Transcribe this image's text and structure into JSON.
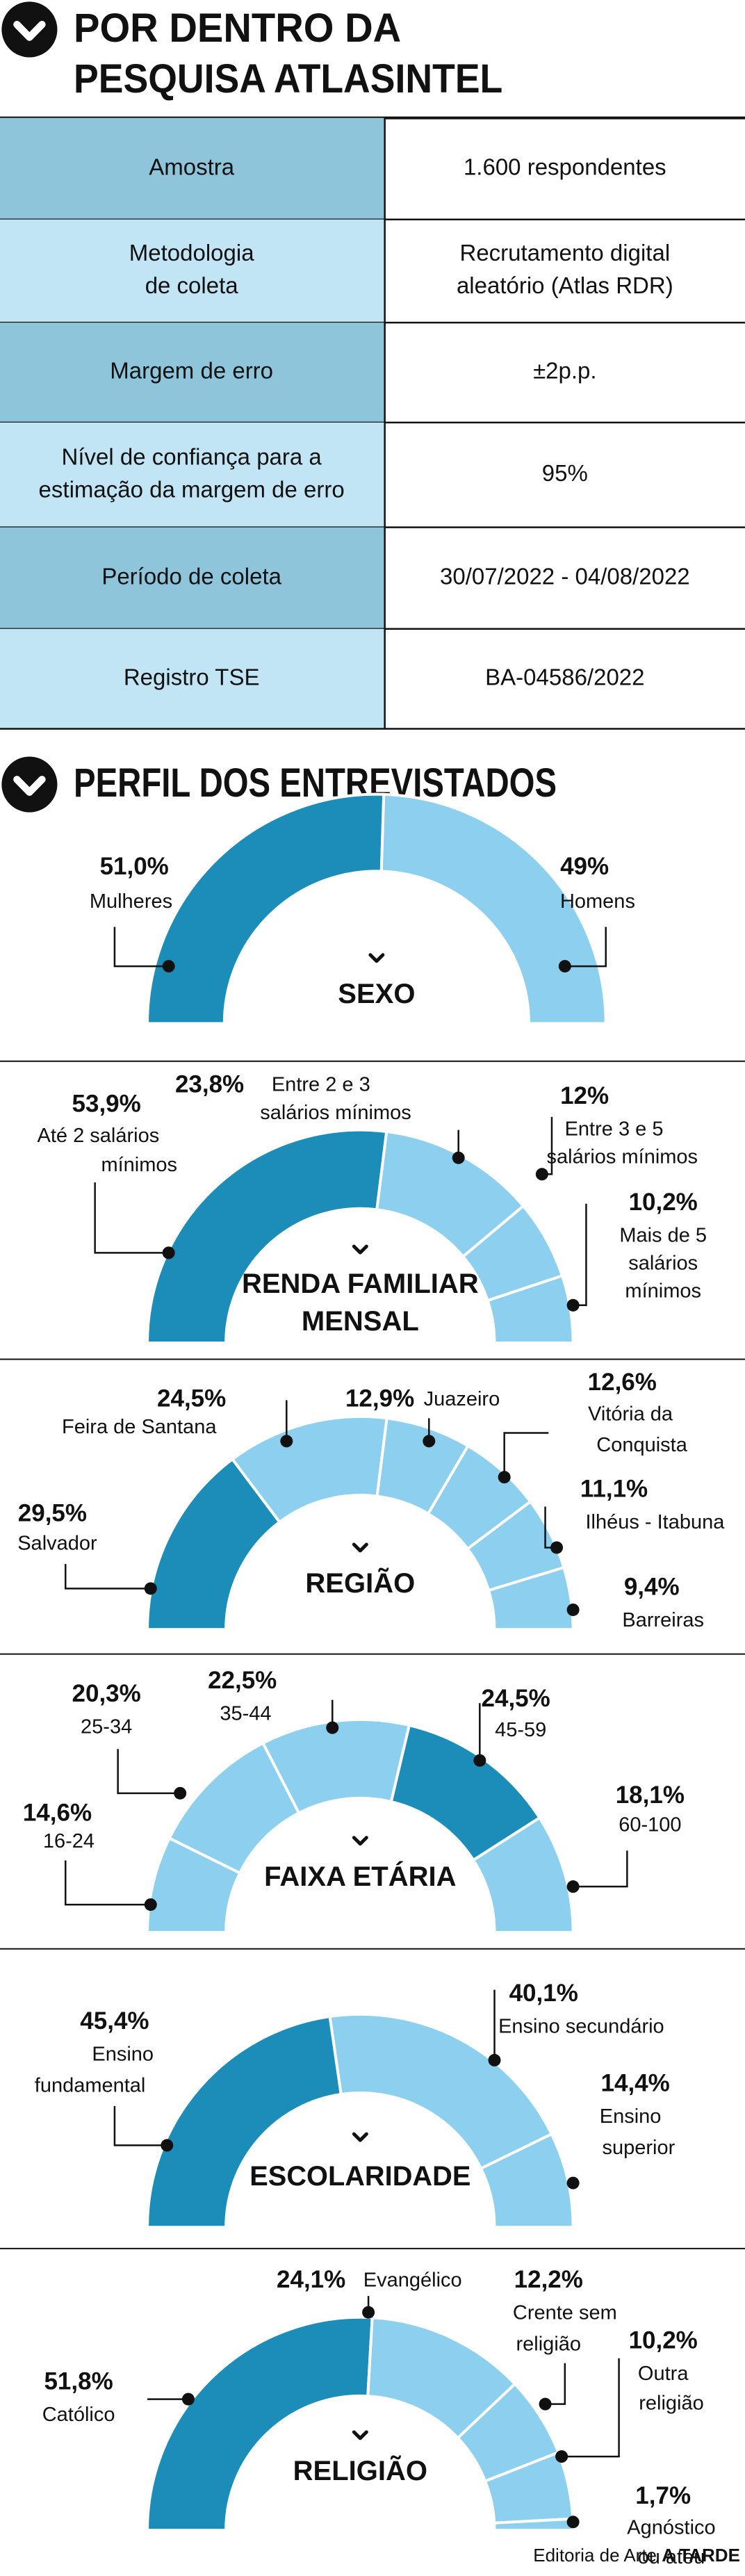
{
  "header": {
    "title": [
      "POR DENTRO DA",
      "PESQUISA ATLASINTEL"
    ]
  },
  "table": {
    "rows": [
      {
        "label": [
          "Amostra"
        ],
        "value": [
          "1.600 respondentes"
        ]
      },
      {
        "label": [
          "Metodologia",
          "de coleta"
        ],
        "value": [
          "Recrutamento digital",
          "aleatório (Atlas RDR)"
        ]
      },
      {
        "label": [
          "Margem de erro"
        ],
        "value": [
          "±2p.p."
        ]
      },
      {
        "label": [
          "Nível de confiança para a",
          "estimação da margem de erro"
        ],
        "value": [
          "95%"
        ]
      },
      {
        "label": [
          "Período de coleta"
        ],
        "value": [
          "30/07/2022 - 04/08/2022"
        ]
      },
      {
        "label": [
          "Registro TSE"
        ],
        "value": [
          "BA-04586/2022"
        ]
      }
    ]
  },
  "section": {
    "title": "PERFIL DOS ENTREVISTADOS"
  },
  "chart_data": [
    {
      "type": "donut",
      "title": [
        "SEXO"
      ],
      "categories": [
        [
          "Mulheres"
        ],
        [
          "Homens"
        ]
      ],
      "values": [
        51.0,
        49
      ],
      "value_labels": [
        "51,0%",
        "49%"
      ],
      "colors": [
        "#1b8db8",
        "#8ccfef"
      ]
    },
    {
      "type": "donut",
      "title": [
        "RENDA FAMILIAR",
        "MENSAL"
      ],
      "categories": [
        [
          "Até 2 salários",
          "mínimos"
        ],
        [
          "Entre 2 e 3",
          "salários mínimos"
        ],
        [
          "Entre 3 e 5",
          "salários mínimos"
        ],
        [
          "Mais de 5",
          "salários",
          "mínimos"
        ]
      ],
      "values": [
        53.9,
        23.8,
        12,
        10.2
      ],
      "value_labels": [
        "53,9%",
        "23,8%",
        "12%",
        "10,2%"
      ],
      "colors": [
        "#1b8db8",
        "#8ccfef",
        "#8ccfef",
        "#8ccfef"
      ]
    },
    {
      "type": "donut",
      "title": [
        "REGIÃO"
      ],
      "categories": [
        [
          "Salvador"
        ],
        [
          "Feira de Santana"
        ],
        [
          "Juazeiro"
        ],
        [
          "Vitória da",
          "Conquista"
        ],
        [
          "Ilhéus - Itabuna"
        ],
        [
          "Barreiras"
        ]
      ],
      "values": [
        29.5,
        24.5,
        12.9,
        12.6,
        11.1,
        9.4
      ],
      "value_labels": [
        "29,5%",
        "24,5%",
        "12,9%",
        "12,6%",
        "11,1%",
        "9,4%"
      ],
      "colors": [
        "#1b8db8",
        "#8ccfef",
        "#8ccfef",
        "#8ccfef",
        "#8ccfef",
        "#8ccfef"
      ]
    },
    {
      "type": "donut",
      "title": [
        "FAIXA ETÁRIA"
      ],
      "categories": [
        [
          "16-24"
        ],
        [
          "25-34"
        ],
        [
          "35-44"
        ],
        [
          "45-59"
        ],
        [
          "60-100"
        ]
      ],
      "values": [
        14.6,
        20.3,
        22.5,
        24.5,
        18.1
      ],
      "value_labels": [
        "14,6%",
        "20,3%",
        "22,5%",
        "24,5%",
        "18,1%"
      ],
      "colors": [
        "#8ccfef",
        "#8ccfef",
        "#8ccfef",
        "#1b8db8",
        "#8ccfef"
      ]
    },
    {
      "type": "donut",
      "title": [
        "ESCOLARIDADE"
      ],
      "categories": [
        [
          "Ensino",
          "fundamental"
        ],
        [
          "Ensino secundário"
        ],
        [
          "Ensino",
          "superior"
        ]
      ],
      "values": [
        45.4,
        40.1,
        14.4
      ],
      "value_labels": [
        "45,4%",
        "40,1%",
        "14,4%"
      ],
      "colors": [
        "#1b8db8",
        "#8ccfef",
        "#8ccfef"
      ]
    },
    {
      "type": "donut",
      "title": [
        "RELIGIÃO"
      ],
      "categories": [
        [
          "Católico"
        ],
        [
          "Evangélico"
        ],
        [
          "Crente sem",
          "religião"
        ],
        [
          "Outra",
          "religião"
        ],
        [
          "Agnóstico",
          "ou ateu"
        ]
      ],
      "values": [
        51.8,
        24.1,
        12.2,
        10.2,
        1.7
      ],
      "value_labels": [
        "51,8%",
        "24,1%",
        "12,2%",
        "10,2%",
        "1,7%"
      ],
      "colors": [
        "#1b8db8",
        "#8ccfef",
        "#8ccfef",
        "#8ccfef",
        "#8ccfef"
      ]
    }
  ],
  "credit": {
    "text": "Editoria de Arte",
    "brand": "A TARDE"
  }
}
